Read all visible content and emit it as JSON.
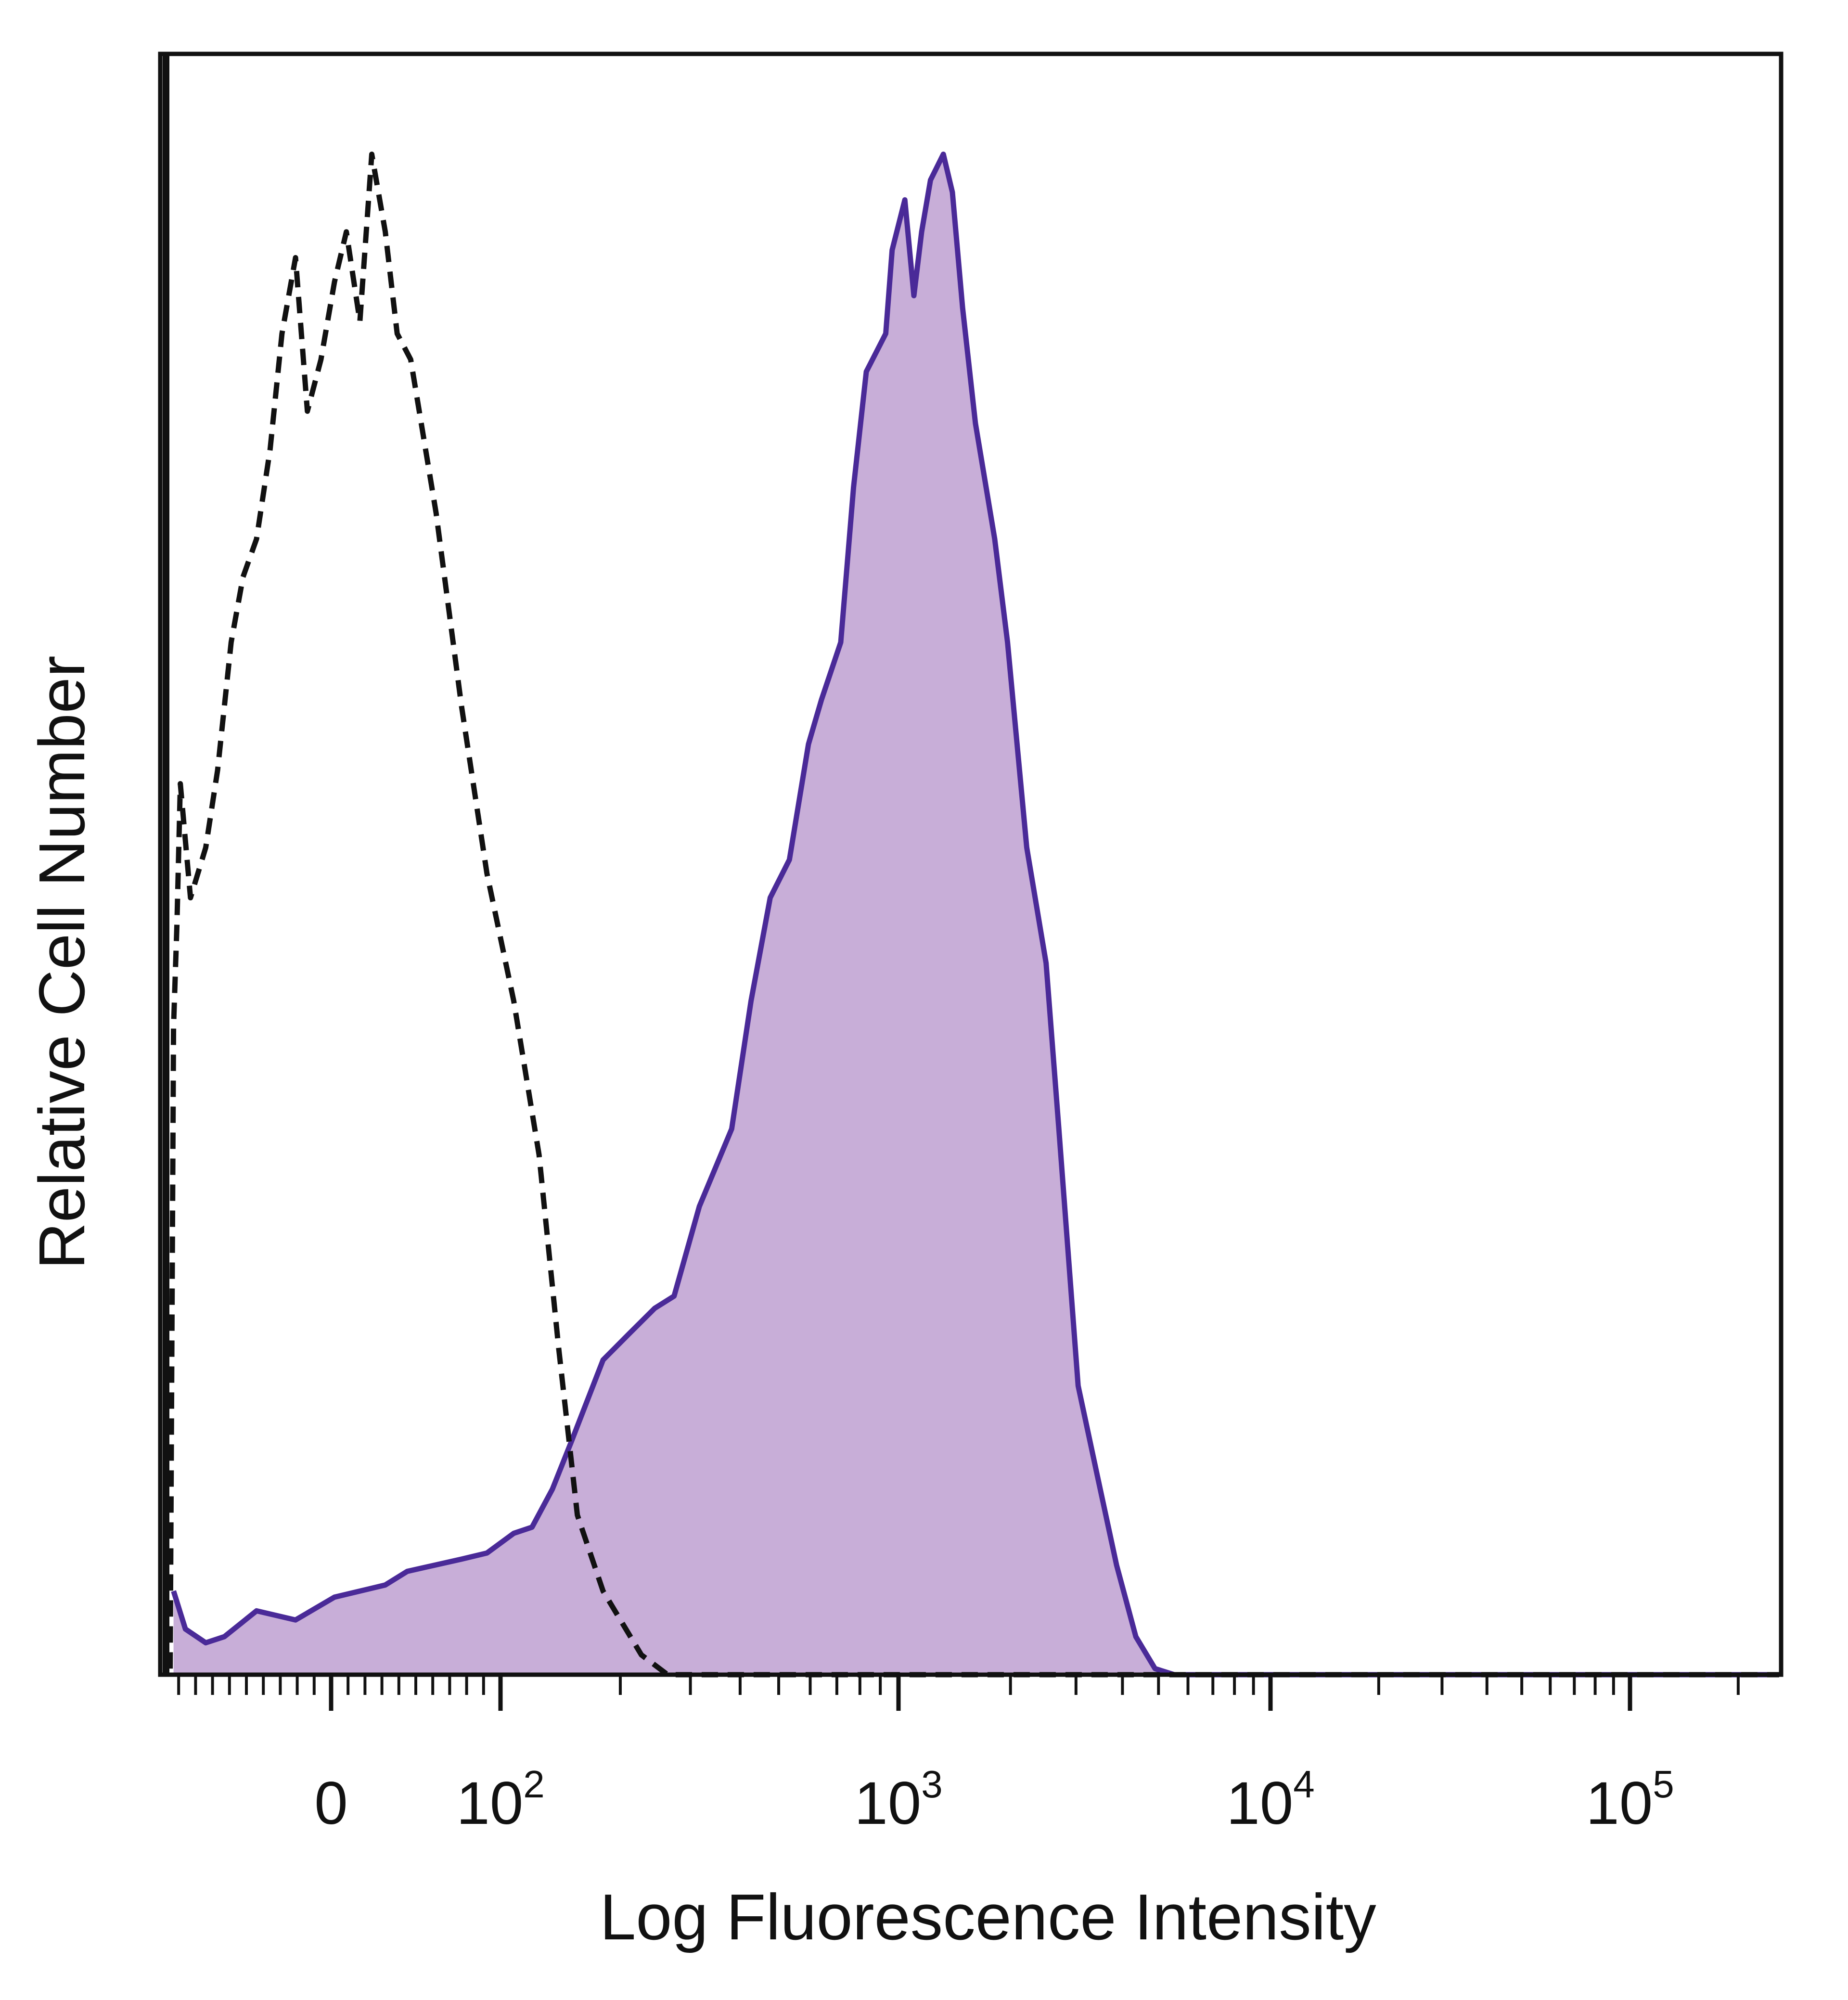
{
  "chart_data": {
    "type": "area",
    "title": "",
    "xlabel": "Log Fluorescence Intensity",
    "ylabel": "Relative Cell Number",
    "x_scale": "biexponential (linear near 0, log above 10^2)",
    "xlim": [
      -100,
      260000
    ],
    "ylim": [
      0,
      106.6
    ],
    "grid": false,
    "legend": "none",
    "x_ticks": [
      {
        "value": 0,
        "base": "0",
        "exp": ""
      },
      {
        "value": 100,
        "base": "10",
        "exp": "2"
      },
      {
        "value": 1000,
        "base": "10",
        "exp": "3"
      },
      {
        "value": 10000,
        "base": "10",
        "exp": "4"
      },
      {
        "value": 100000,
        "base": "10",
        "exp": "5"
      }
    ],
    "series": [
      {
        "style": "filled-solid",
        "fill_color": "#c8aed8",
        "line_color": "#4a2a98",
        "x": [
          -93,
          -86,
          -74,
          -63,
          -44,
          -21,
          2,
          32,
          45,
          77,
          92,
          108,
          120,
          135,
          150,
          181,
          210,
          244,
          273,
          316,
          381,
          426,
          476,
          532,
          594,
          640,
          716,
          771,
          830,
          929,
          964,
          1040,
          1100,
          1154,
          1219,
          1320,
          1396,
          1487,
          1610,
          1814,
          1964,
          2212,
          2493,
          2698,
          3040,
          3423,
          3857,
          4345,
          4894,
          5512,
          6209,
          260000
        ],
        "y": [
          5.5,
          3.0,
          2.1,
          2.5,
          4.2,
          3.6,
          5.1,
          5.9,
          6.8,
          7.6,
          8.0,
          9.3,
          9.7,
          12.2,
          15.2,
          20.7,
          22.4,
          24.1,
          24.9,
          30.8,
          35.9,
          44.3,
          51.1,
          53.6,
          61.2,
          64.1,
          67.9,
          78.1,
          85.7,
          88.2,
          93.7,
          97.0,
          90.7,
          94.9,
          98.3,
          100,
          97.5,
          89.9,
          82.3,
          74.7,
          67.9,
          54.4,
          46.8,
          35.9,
          19.0,
          13.1,
          7.2,
          2.5,
          0.4,
          0,
          0,
          0
        ]
      },
      {
        "style": "dashed",
        "line_color": "#111111",
        "x": [
          -95,
          -93,
          -91,
          -89,
          -83,
          -74,
          -67,
          -59,
          -52,
          -44,
          -36,
          -29,
          -21,
          -14,
          -6,
          2,
          9,
          17,
          24,
          32,
          39,
          47,
          62,
          77,
          92,
          108,
          125,
          140,
          156,
          181,
          226,
          263,
          260000
        ],
        "y": [
          0.4,
          42.6,
          49.4,
          58.6,
          51.1,
          54.4,
          59.5,
          67.9,
          72.2,
          74.7,
          80.6,
          88.2,
          93.2,
          83.1,
          86.5,
          91.6,
          94.9,
          89.0,
          100,
          94.9,
          88.2,
          86.5,
          76.4,
          63.7,
          52.7,
          44.3,
          34.2,
          21.5,
          10.5,
          5.5,
          1.3,
          0,
          0
        ]
      }
    ]
  }
}
